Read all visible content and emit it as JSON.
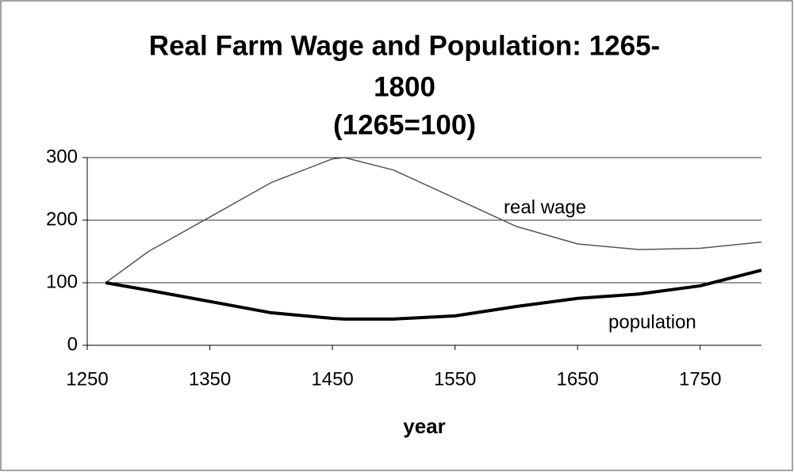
{
  "chart_data": {
    "type": "line",
    "title": [
      "Real Farm Wage and Population: 1265-",
      "1800",
      "(1265=100)"
    ],
    "xlabel": "year",
    "x": [
      1265,
      1300,
      1350,
      1400,
      1450,
      1460,
      1500,
      1550,
      1600,
      1650,
      1700,
      1750,
      1800
    ],
    "series": [
      {
        "name": "real wage",
        "color": "#555555",
        "values": [
          100,
          150,
          205,
          260,
          298,
          300,
          280,
          235,
          190,
          162,
          153,
          155,
          165
        ]
      },
      {
        "name": "population",
        "color": "#000000",
        "values": [
          100,
          88,
          70,
          52,
          43,
          42,
          42,
          47,
          62,
          75,
          82,
          95,
          120
        ]
      }
    ],
    "xlim": [
      1250,
      1800
    ],
    "xticks": [
      1250,
      1350,
      1450,
      1550,
      1650,
      1750
    ],
    "ylim": [
      0,
      300
    ],
    "yticks": [
      0,
      100,
      200,
      300
    ],
    "grid": true
  }
}
